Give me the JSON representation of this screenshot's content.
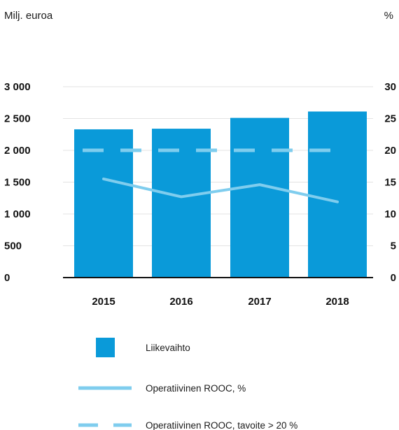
{
  "chart_data": {
    "type": "bar",
    "title": "",
    "left_unit": "Milj. euroa",
    "right_unit": "%",
    "categories": [
      "2015",
      "2016",
      "2017",
      "2018"
    ],
    "left_axis": {
      "min": 0,
      "max": 3000,
      "ticks": [
        0,
        500,
        1000,
        1500,
        2000,
        2500,
        3000
      ],
      "tick_labels": [
        "0",
        "500",
        "1 000",
        "1 500",
        "2 000",
        "2 500",
        "3 000"
      ]
    },
    "right_axis": {
      "min": 0,
      "max": 30,
      "ticks": [
        0,
        5,
        10,
        15,
        20,
        25,
        30
      ],
      "tick_labels": [
        "0",
        "5",
        "10",
        "15",
        "20",
        "25",
        "30"
      ]
    },
    "grid": true,
    "series": [
      {
        "name": "Liikevaihto",
        "kind": "bar",
        "axis": "left",
        "values": [
          2330,
          2340,
          2510,
          2610
        ],
        "color": "#0a9ad9"
      },
      {
        "name": "Operatiivinen ROOC, %",
        "kind": "line",
        "axis": "right",
        "values": [
          15.5,
          12.7,
          14.6,
          11.9
        ],
        "color": "#7fcdee"
      },
      {
        "name": "Operatiivinen ROOC, tavoite > 20 %",
        "kind": "dashed-line",
        "axis": "right",
        "values": [
          20,
          20,
          20,
          20
        ],
        "color": "#7fcdee"
      }
    ],
    "legend_placement": "bottom"
  }
}
